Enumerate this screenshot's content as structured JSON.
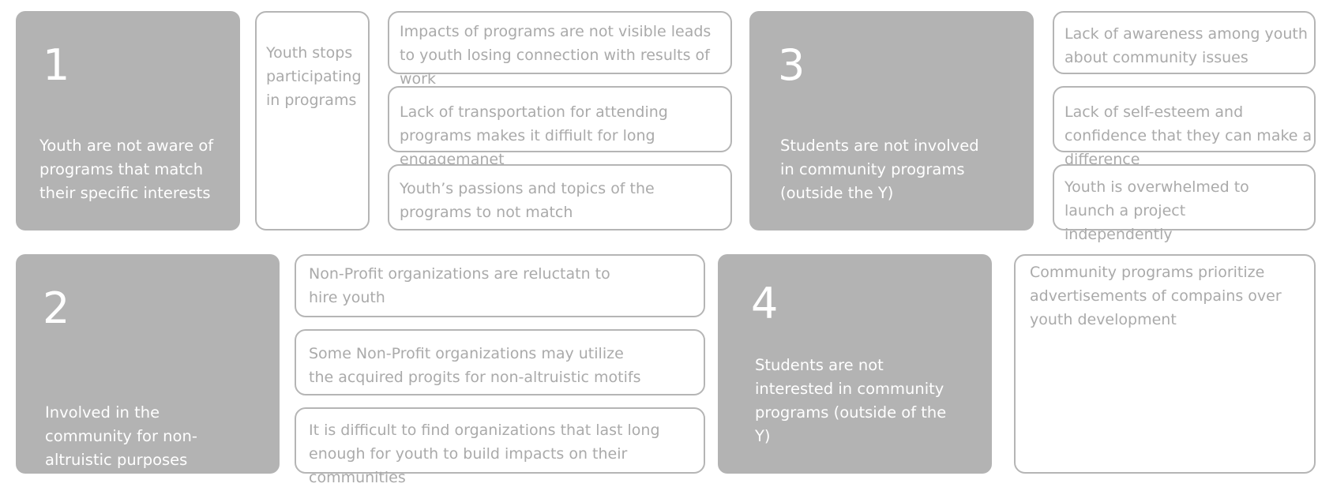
{
  "panels": [
    {
      "number": "1",
      "title": "Youth are not aware of programs that match their specific interests",
      "lead": "Youth stops participating in programs",
      "items": [
        "Impacts of programs are not visible leads to youth losing connection with results of work",
        "Lack of transportation for attending programs makes it diffiult for long engagemanet",
        "Youth’s passions and topics of the programs to not match"
      ]
    },
    {
      "number": "3",
      "title": "Students are not involved in community programs (outside the Y)",
      "items": [
        "Lack of awareness among youth about community issues",
        "Lack of self-esteem and confidence that they can make a difference",
        "Youth is overwhelmed to launch a project independently"
      ]
    },
    {
      "number": "2",
      "title": "Involved in the community for non-altruistic purposes",
      "items": [
        "Non-Profit organizations are reluctatn to hire youth",
        "Some Non-Profit organizations may utilize the acquired progits for non-altruistic motifs",
        "It is difficult to find organizations that last long enough for youth to build impacts on their communities"
      ]
    },
    {
      "number": "4",
      "title": "Students are not interested in community programs (outside of the Y)",
      "items": [
        "Community programs prioritize advertisements of compains over youth development"
      ]
    }
  ]
}
